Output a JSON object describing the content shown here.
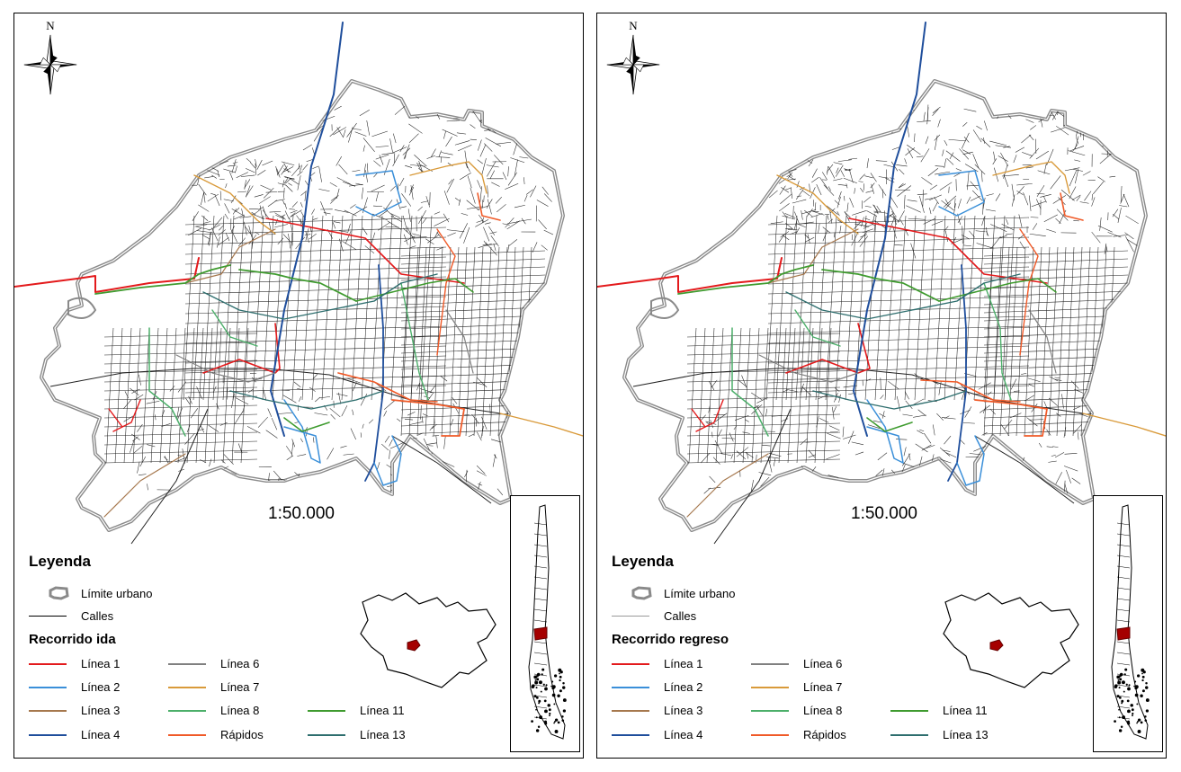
{
  "panels": [
    {
      "north": "N",
      "scale": "1:50.000",
      "legend": {
        "title": "Leyenda",
        "limite": "Límite urbano",
        "calles": "Calles",
        "subtitle": "Recorrido ida",
        "lines": [
          {
            "label": "Línea 1",
            "color": "#e31a1c"
          },
          {
            "label": "Línea 2",
            "color": "#3a8fd9"
          },
          {
            "label": "Línea 3",
            "color": "#a6784e"
          },
          {
            "label": "Línea 4",
            "color": "#1f4e9c"
          },
          {
            "label": "Línea 6",
            "color": "#808080"
          },
          {
            "label": "Línea 7",
            "color": "#d99a3a"
          },
          {
            "label": "Línea 8",
            "color": "#4caf6a"
          },
          {
            "label": "Rápidos",
            "color": "#f05a28"
          },
          {
            "label": "Línea 11",
            "color": "#3f9b2f"
          },
          {
            "label": "Línea 13",
            "color": "#2e6e6e"
          }
        ]
      }
    },
    {
      "north": "N",
      "scale": "1:50.000",
      "legend": {
        "title": "Leyenda",
        "limite": "Límite urbano",
        "calles": "Calles",
        "subtitle": "Recorrido regreso",
        "lines": [
          {
            "label": "Línea 1",
            "color": "#e31a1c"
          },
          {
            "label": "Línea 2",
            "color": "#3a8fd9"
          },
          {
            "label": "Línea 3",
            "color": "#a6784e"
          },
          {
            "label": "Línea 4",
            "color": "#1f4e9c"
          },
          {
            "label": "Línea 6",
            "color": "#808080"
          },
          {
            "label": "Línea 7",
            "color": "#d99a3a"
          },
          {
            "label": "Línea 8",
            "color": "#4caf6a"
          },
          {
            "label": "Rápidos",
            "color": "#f05a28"
          },
          {
            "label": "Línea 11",
            "color": "#3f9b2f"
          },
          {
            "label": "Línea 13",
            "color": "#2e6e6e"
          }
        ]
      }
    }
  ]
}
